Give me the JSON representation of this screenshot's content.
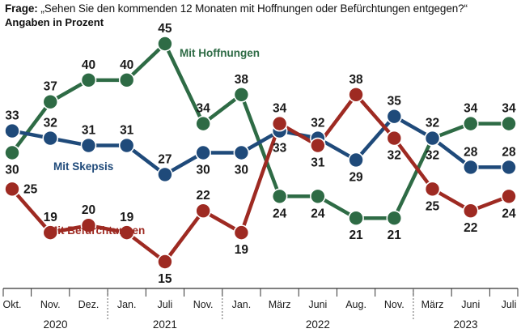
{
  "header": {
    "title_prefix": "Frage:",
    "title_question": "„Sehen Sie den kommenden 12 Monaten mit Hoffnungen oder Befürchtungen entgegen?“",
    "subtitle": "Angaben in Prozent"
  },
  "chart_data": {
    "type": "line",
    "categories": [
      "Okt.",
      "Nov.",
      "Dez.",
      "Jan.",
      "Juli",
      "Nov.",
      "Jan.",
      "März",
      "Juni",
      "Aug.",
      "Nov.",
      "März",
      "Juni",
      "Juli"
    ],
    "years": [
      {
        "label": "2020",
        "from": 0,
        "to": 2
      },
      {
        "label": "2021",
        "from": 3,
        "to": 5
      },
      {
        "label": "2022",
        "from": 6,
        "to": 10
      },
      {
        "label": "2023",
        "from": 11,
        "to": 13
      }
    ],
    "ylim": [
      13,
      47
    ],
    "series": [
      {
        "name": "Mit Hoffnungen",
        "color": "#2e6b45",
        "values": [
          30,
          37,
          40,
          40,
          45,
          34,
          38,
          24,
          24,
          21,
          21,
          32,
          34,
          34
        ],
        "label_pos": [
          "below",
          "above",
          "above",
          "above",
          "above",
          "above",
          "above",
          "below",
          "below",
          "below",
          "below",
          "above",
          "above",
          "above"
        ]
      },
      {
        "name": "Mit Skepsis",
        "color": "#1f4a7a",
        "values": [
          33,
          32,
          31,
          31,
          27,
          30,
          30,
          33,
          32,
          29,
          35,
          32,
          28,
          28
        ],
        "label_pos": [
          "above",
          "above",
          "above",
          "above",
          "above",
          "below",
          "below",
          "below",
          "above",
          "below",
          "above",
          "below",
          "above",
          "above"
        ]
      },
      {
        "name": "Mit Befürchtungen",
        "color": "#9e2a22",
        "values": [
          25,
          19,
          20,
          19,
          15,
          22,
          19,
          34,
          31,
          38,
          32,
          25,
          22,
          24
        ],
        "label_pos": [
          "right",
          "above",
          "above",
          "above",
          "below",
          "above",
          "below",
          "above",
          "below",
          "above",
          "below",
          "below",
          "below",
          "below"
        ]
      }
    ]
  }
}
